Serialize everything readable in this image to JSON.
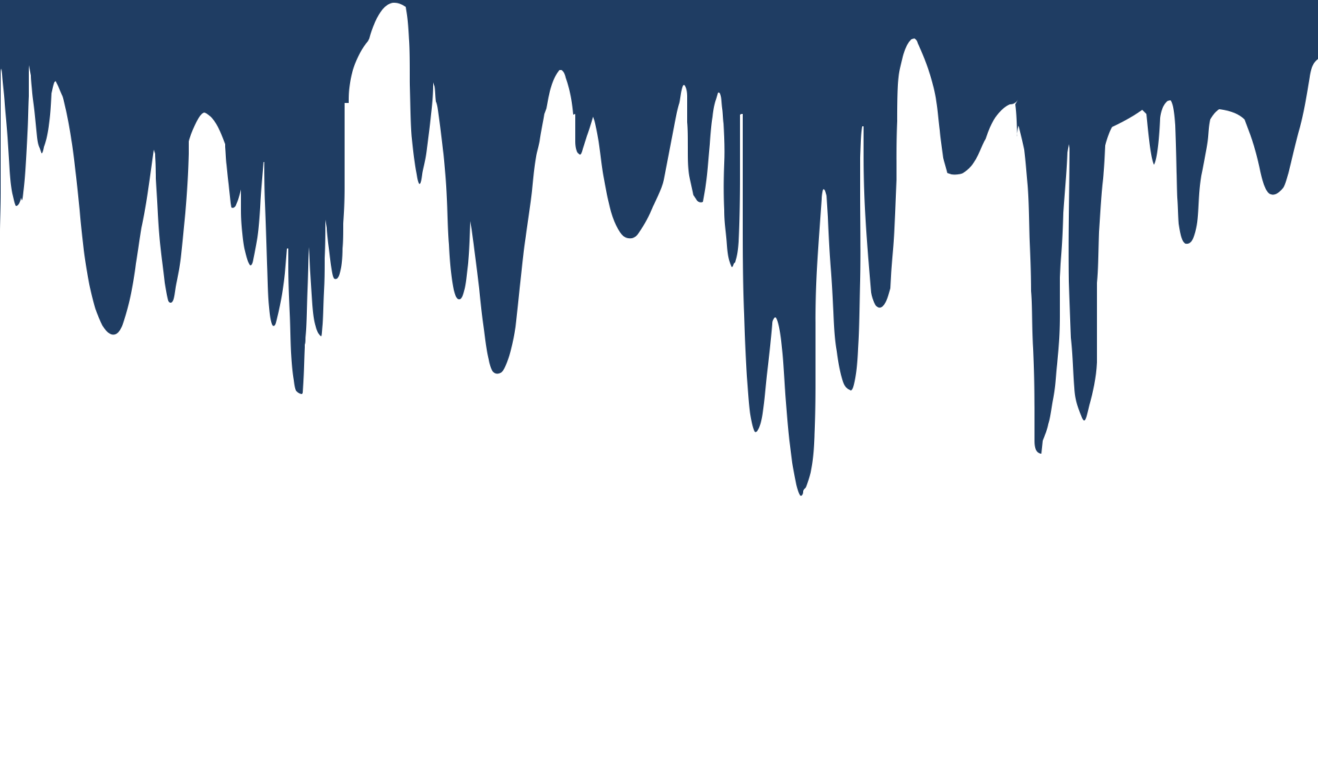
{
  "scene": {
    "description_label": "",
    "colors": {
      "background": "#ffffff",
      "paint": "#1f3d63"
    },
    "graphic": "dripping-paint-border"
  }
}
